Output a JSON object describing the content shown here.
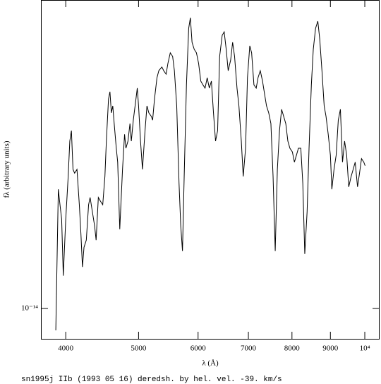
{
  "chart_data": {
    "type": "line",
    "xlabel": "λ (Å)",
    "ylabel": "fλ (arbitrary units)",
    "caption": "sn1995j IIb (1993 05 16) deredsh. by hel. vel.   -39. km/s",
    "log_x": true,
    "log_y": true,
    "color": "#000000",
    "xlim": [
      3707,
      10464
    ],
    "ylim": [
      8.07e-15,
      8.83e-14
    ],
    "xticks": [
      4000,
      5000,
      6000,
      7000,
      8000,
      9000,
      {
        "value": 10000,
        "label": "10⁴"
      }
    ],
    "yticks": [
      {
        "value": 1e-14,
        "label": "10⁻¹⁴"
      }
    ],
    "x": [
      3880,
      3910,
      3930,
      3950,
      3970,
      4000,
      4030,
      4050,
      4070,
      4090,
      4110,
      4140,
      4170,
      4190,
      4210,
      4230,
      4260,
      4290,
      4310,
      4340,
      4370,
      4390,
      4420,
      4450,
      4480,
      4510,
      4530,
      4560,
      4580,
      4600,
      4620,
      4640,
      4670,
      4690,
      4720,
      4760,
      4790,
      4810,
      4840,
      4870,
      4890,
      4920,
      4960,
      4980,
      5000,
      5030,
      5060,
      5100,
      5130,
      5160,
      5200,
      5220,
      5250,
      5290,
      5320,
      5370,
      5400,
      5440,
      5470,
      5510,
      5550,
      5580,
      5620,
      5660,
      5690,
      5720,
      5750,
      5790,
      5830,
      5860,
      5890,
      5930,
      5970,
      6010,
      6050,
      6090,
      6130,
      6170,
      6210,
      6250,
      6290,
      6330,
      6370,
      6410,
      6460,
      6500,
      6540,
      6580,
      6630,
      6670,
      6710,
      6760,
      6800,
      6850,
      6890,
      6940,
      6980,
      7030,
      7070,
      7120,
      7170,
      7210,
      7260,
      7310,
      7360,
      7400,
      7450,
      7500,
      7550,
      7600,
      7650,
      7700,
      7750,
      7800,
      7850,
      7900,
      7950,
      8010,
      8060,
      8110,
      8160,
      8220,
      8270,
      8320,
      8380,
      8430,
      8490,
      8540,
      8600,
      8660,
      8710,
      8770,
      8830,
      8880,
      8940,
      9000,
      9040,
      9100,
      9160,
      9220,
      9280,
      9340,
      9400,
      9460,
      9520,
      9590,
      9650,
      9710,
      9780,
      9840,
      9900,
      9970,
      10010
    ],
    "values": [
      8.57e-15,
      2.32e-14,
      2.08e-14,
      1.88e-14,
      1.26e-14,
      1.88e-14,
      2.54e-14,
      3.26e-14,
      3.51e-14,
      2.67e-14,
      2.6e-14,
      2.67e-14,
      2.08e-14,
      1.7e-14,
      1.34e-14,
      1.54e-14,
      1.62e-14,
      2.08e-14,
      2.19e-14,
      1.98e-14,
      1.79e-14,
      1.62e-14,
      2.19e-14,
      2.13e-14,
      2.08e-14,
      2.54e-14,
      3.26e-14,
      4.39e-14,
      4.62e-14,
      3.98e-14,
      4.18e-14,
      3.69e-14,
      3.1e-14,
      2.81e-14,
      1.75e-14,
      2.67e-14,
      3.42e-14,
      3.1e-14,
      3.26e-14,
      3.69e-14,
      3.26e-14,
      3.78e-14,
      4.39e-14,
      4.74e-14,
      4.18e-14,
      3.26e-14,
      2.67e-14,
      3.51e-14,
      4.18e-14,
      3.98e-14,
      3.88e-14,
      3.78e-14,
      4.39e-14,
      5.1e-14,
      5.36e-14,
      5.5e-14,
      5.36e-14,
      5.23e-14,
      5.64e-14,
      6.08e-14,
      5.93e-14,
      5.36e-14,
      4.18e-14,
      2.42e-14,
      1.79e-14,
      1.5e-14,
      2.54e-14,
      4.85e-14,
      7.23e-14,
      7.79e-14,
      6.55e-14,
      6.23e-14,
      6.08e-14,
      5.64e-14,
      4.98e-14,
      4.85e-14,
      4.74e-14,
      5.1e-14,
      4.74e-14,
      4.98e-14,
      3.98e-14,
      3.26e-14,
      3.51e-14,
      5.93e-14,
      6.88e-14,
      7.05e-14,
      6.23e-14,
      5.36e-14,
      5.78e-14,
      6.55e-14,
      5.93e-14,
      4.74e-14,
      4.18e-14,
      3.26e-14,
      2.54e-14,
      3.1e-14,
      5.1e-14,
      6.39e-14,
      6.08e-14,
      4.85e-14,
      4.74e-14,
      5.1e-14,
      5.36e-14,
      4.98e-14,
      4.51e-14,
      4.18e-14,
      3.98e-14,
      3.69e-14,
      2.54e-14,
      1.5e-14,
      2.67e-14,
      3.51e-14,
      4.08e-14,
      3.88e-14,
      3.69e-14,
      3.26e-14,
      3.1e-14,
      3.02e-14,
      2.81e-14,
      2.95e-14,
      3.1e-14,
      3.1e-14,
      2.42e-14,
      1.47e-14,
      1.98e-14,
      3.1e-14,
      4.85e-14,
      6.23e-14,
      7.23e-14,
      7.6e-14,
      6.71e-14,
      5.36e-14,
      4.18e-14,
      3.88e-14,
      3.42e-14,
      2.95e-14,
      2.32e-14,
      2.67e-14,
      2.95e-14,
      3.78e-14,
      4.08e-14,
      2.81e-14,
      3.26e-14,
      2.95e-14,
      2.36e-14,
      2.54e-14,
      2.67e-14,
      2.81e-14,
      2.36e-14,
      2.6e-14,
      2.88e-14,
      2.81e-14,
      2.74e-14
    ]
  }
}
